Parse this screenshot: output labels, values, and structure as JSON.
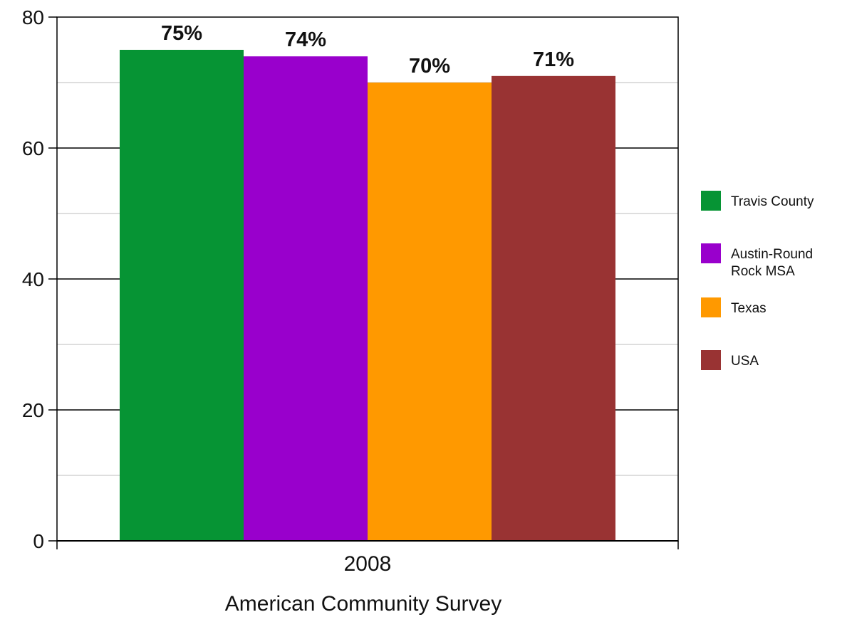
{
  "chart_data": {
    "type": "bar",
    "title": "",
    "xlabel": "American Community Survey",
    "ylabel": "",
    "categories": [
      "2008"
    ],
    "ylim": [
      0,
      80
    ],
    "yticks": [
      0,
      20,
      40,
      60,
      80
    ],
    "minor_grid_every": 10,
    "grid": true,
    "legend_position": "right",
    "series": [
      {
        "name": "Travis County",
        "values": [
          75
        ],
        "label": "75%",
        "color": "#069434"
      },
      {
        "name": "Austin-Round Rock MSA",
        "values": [
          74
        ],
        "label": "74%",
        "color": "#9900cc"
      },
      {
        "name": "Texas",
        "values": [
          70
        ],
        "label": "70%",
        "color": "#ff9900"
      },
      {
        "name": "USA",
        "values": [
          71
        ],
        "label": "71%",
        "color": "#993333"
      }
    ]
  }
}
